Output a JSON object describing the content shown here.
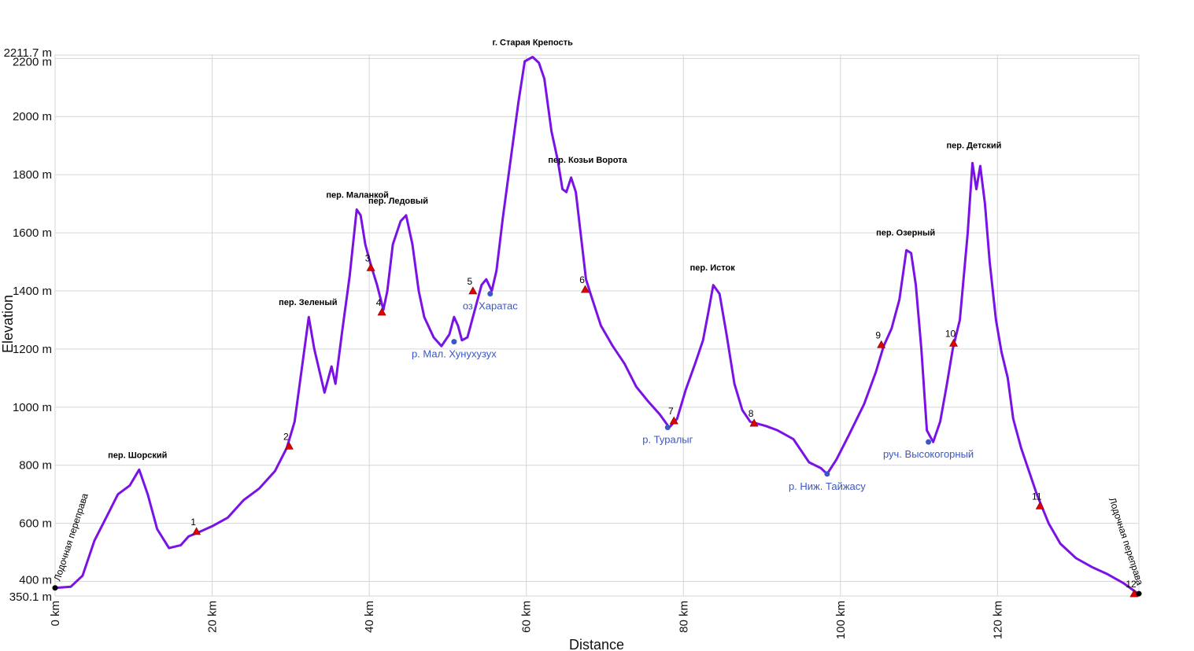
{
  "colors": {
    "profile": "#7a12e6",
    "grid": "#d6d6d6",
    "waypoint": "#e30000",
    "water": "#3a57c8",
    "endpoint": "#000000"
  },
  "chart_data": {
    "type": "line",
    "title": "",
    "xlabel": "Distance",
    "ylabel": "Elevation",
    "xlim": [
      0,
      138
    ],
    "ylim": [
      350.1,
      2211.7
    ],
    "grid": true,
    "x_ticks": [
      {
        "value": 0,
        "label": "0 km"
      },
      {
        "value": 20,
        "label": "20 km"
      },
      {
        "value": 40,
        "label": "40 km"
      },
      {
        "value": 60,
        "label": "60 km"
      },
      {
        "value": 80,
        "label": "80 km"
      },
      {
        "value": 100,
        "label": "100 km"
      },
      {
        "value": 120,
        "label": "120 km"
      }
    ],
    "y_ticks": [
      {
        "value": 2211.7,
        "label": "2211.7 m"
      },
      {
        "value": 2200,
        "label": "2200 m"
      },
      {
        "value": 2000,
        "label": "2000 m"
      },
      {
        "value": 1800,
        "label": "1800 m"
      },
      {
        "value": 1600,
        "label": "1600 m"
      },
      {
        "value": 1400,
        "label": "1400 m"
      },
      {
        "value": 1200,
        "label": "1200 m"
      },
      {
        "value": 1000,
        "label": "1000 m"
      },
      {
        "value": 800,
        "label": "800 m"
      },
      {
        "value": 600,
        "label": "600 m"
      },
      {
        "value": 400,
        "label": "400 m"
      },
      {
        "value": 350.1,
        "label": "350.1 m"
      }
    ],
    "series": [
      {
        "points": [
          [
            0,
            378
          ],
          [
            2,
            382
          ],
          [
            3.5,
            420
          ],
          [
            5,
            540
          ],
          [
            6.5,
            620
          ],
          [
            8,
            700
          ],
          [
            9.5,
            730
          ],
          [
            10.7,
            785
          ],
          [
            11.8,
            700
          ],
          [
            13,
            580
          ],
          [
            14.5,
            515
          ],
          [
            16,
            525
          ],
          [
            17,
            555
          ],
          [
            18.5,
            572
          ],
          [
            20,
            590
          ],
          [
            22,
            620
          ],
          [
            24,
            680
          ],
          [
            26,
            720
          ],
          [
            28,
            780
          ],
          [
            29.5,
            860
          ],
          [
            30.5,
            950
          ],
          [
            31.5,
            1150
          ],
          [
            32.3,
            1310
          ],
          [
            33,
            1200
          ],
          [
            34.3,
            1050
          ],
          [
            35.2,
            1140
          ],
          [
            35.7,
            1080
          ],
          [
            36.5,
            1250
          ],
          [
            37.5,
            1450
          ],
          [
            38.4,
            1680
          ],
          [
            38.9,
            1660
          ],
          [
            39.5,
            1560
          ],
          [
            40.2,
            1490
          ],
          [
            41,
            1420
          ],
          [
            41.8,
            1335
          ],
          [
            42.3,
            1400
          ],
          [
            43,
            1560
          ],
          [
            44,
            1640
          ],
          [
            44.7,
            1660
          ],
          [
            45.5,
            1560
          ],
          [
            46.3,
            1400
          ],
          [
            47,
            1310
          ],
          [
            48.2,
            1240
          ],
          [
            49.2,
            1210
          ],
          [
            50.2,
            1250
          ],
          [
            50.8,
            1310
          ],
          [
            51.3,
            1280
          ],
          [
            51.8,
            1230
          ],
          [
            52.5,
            1240
          ],
          [
            53.5,
            1340
          ],
          [
            54.3,
            1420
          ],
          [
            54.9,
            1440
          ],
          [
            55.6,
            1400
          ],
          [
            56.2,
            1470
          ],
          [
            57,
            1650
          ],
          [
            58,
            1850
          ],
          [
            59,
            2050
          ],
          [
            59.8,
            2190
          ],
          [
            60.8,
            2205
          ],
          [
            61.6,
            2185
          ],
          [
            62.3,
            2130
          ],
          [
            63.2,
            1950
          ],
          [
            64,
            1850
          ],
          [
            64.6,
            1750
          ],
          [
            65.1,
            1740
          ],
          [
            65.7,
            1790
          ],
          [
            66.3,
            1740
          ],
          [
            67,
            1580
          ],
          [
            67.6,
            1440
          ],
          [
            68.3,
            1380
          ],
          [
            69.5,
            1280
          ],
          [
            71,
            1210
          ],
          [
            72.5,
            1150
          ],
          [
            74,
            1070
          ],
          [
            75.5,
            1020
          ],
          [
            77,
            975
          ],
          [
            78.2,
            930
          ],
          [
            79.2,
            960
          ],
          [
            80.3,
            1060
          ],
          [
            81.5,
            1150
          ],
          [
            82.5,
            1230
          ],
          [
            83.2,
            1330
          ],
          [
            83.8,
            1420
          ],
          [
            84.6,
            1390
          ],
          [
            85.5,
            1250
          ],
          [
            86.5,
            1080
          ],
          [
            87.5,
            990
          ],
          [
            88.5,
            950
          ],
          [
            90.5,
            935
          ],
          [
            92,
            920
          ],
          [
            94,
            890
          ],
          [
            96,
            810
          ],
          [
            97.5,
            790
          ],
          [
            98.3,
            770
          ],
          [
            99.5,
            820
          ],
          [
            101,
            900
          ],
          [
            103,
            1010
          ],
          [
            104.5,
            1120
          ],
          [
            105.5,
            1210
          ],
          [
            106.5,
            1270
          ],
          [
            107.5,
            1370
          ],
          [
            108.4,
            1540
          ],
          [
            109,
            1530
          ],
          [
            109.6,
            1420
          ],
          [
            110.3,
            1200
          ],
          [
            111,
            920
          ],
          [
            111.8,
            880
          ],
          [
            112.7,
            950
          ],
          [
            113.5,
            1070
          ],
          [
            114.3,
            1200
          ],
          [
            115.2,
            1300
          ],
          [
            116.2,
            1600
          ],
          [
            116.8,
            1840
          ],
          [
            117.3,
            1750
          ],
          [
            117.8,
            1830
          ],
          [
            118.4,
            1700
          ],
          [
            119,
            1500
          ],
          [
            119.8,
            1300
          ],
          [
            120.5,
            1190
          ],
          [
            121.3,
            1100
          ],
          [
            122,
            960
          ],
          [
            123,
            860
          ],
          [
            124,
            780
          ],
          [
            125,
            700
          ],
          [
            126.5,
            600
          ],
          [
            128,
            530
          ],
          [
            130,
            480
          ],
          [
            132,
            450
          ],
          [
            134,
            425
          ],
          [
            136,
            395
          ],
          [
            137.9,
            358
          ]
        ]
      }
    ],
    "waypoints": [
      {
        "label": "1",
        "x": 18,
        "y": 572
      },
      {
        "label": "2",
        "x": 29.8,
        "y": 866
      },
      {
        "label": "3",
        "x": 40.2,
        "y": 1480
      },
      {
        "label": "4",
        "x": 41.6,
        "y": 1327
      },
      {
        "label": "5",
        "x": 53.2,
        "y": 1400
      },
      {
        "label": "6",
        "x": 67.5,
        "y": 1405
      },
      {
        "label": "7",
        "x": 78.8,
        "y": 953
      },
      {
        "label": "8",
        "x": 89,
        "y": 945
      },
      {
        "label": "9",
        "x": 105.2,
        "y": 1215
      },
      {
        "label": "10",
        "x": 114.4,
        "y": 1220
      },
      {
        "label": "11",
        "x": 125.4,
        "y": 660
      },
      {
        "label": "12",
        "x": 137.4,
        "y": 358
      }
    ],
    "peak_labels": [
      {
        "text": "пер. Шорский",
        "x": 10.5,
        "y": 785
      },
      {
        "text": "пер. Зеленый",
        "x": 32.2,
        "y": 1310
      },
      {
        "text": "пер. Маланкой",
        "x": 38.5,
        "y": 1680
      },
      {
        "text": "пер. Ледовый",
        "x": 43.7,
        "y": 1660
      },
      {
        "text": "г. Старая Крепость",
        "x": 60.8,
        "y": 2205
      },
      {
        "text": "пер. Козьи Ворота",
        "x": 67.8,
        "y": 1800
      },
      {
        "text": "пер. Исток",
        "x": 83.7,
        "y": 1430
      },
      {
        "text": "пер. Озерный",
        "x": 108.3,
        "y": 1550
      },
      {
        "text": "пер. Детский",
        "x": 117,
        "y": 1850
      }
    ],
    "water_points": [
      {
        "text": "оз. Харатас",
        "x": 55.4,
        "y": 1390
      },
      {
        "text": "р. Мал. Хунухузух",
        "x": 50.8,
        "y": 1225
      },
      {
        "text": "р. Туралыг",
        "x": 78,
        "y": 930
      },
      {
        "text": "р. Ниж. Тайжасу",
        "x": 98.3,
        "y": 770
      },
      {
        "text": "руч. Высокогорный",
        "x": 111.2,
        "y": 880
      }
    ],
    "endpoints": [
      {
        "text": "Лодочная переправа",
        "x": 0,
        "y": 378
      },
      {
        "text": "Лодочная переправа",
        "x": 138,
        "y": 358
      }
    ]
  }
}
